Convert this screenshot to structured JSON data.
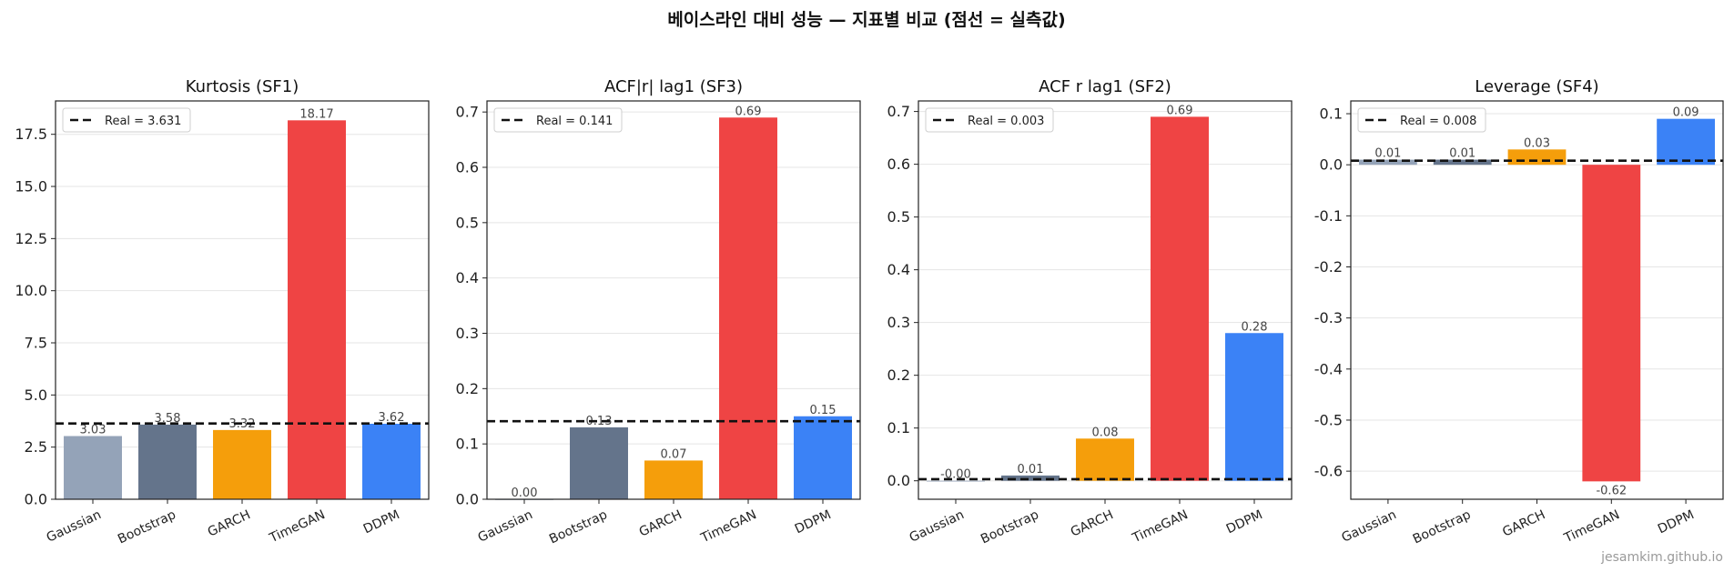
{
  "figure": {
    "suptitle": "베이스라인 대비 성능 — 지표별 비교 (점선 = 실측값)",
    "watermark": "jesamkim.github.io"
  },
  "colors": {
    "Gaussian": "#94a3b8",
    "Bootstrap": "#64748b",
    "GARCH": "#f59e0b",
    "TimeGAN": "#ef4444",
    "DDPM": "#3b82f6",
    "real_line": "#111111",
    "grid": "#e5e5e5"
  },
  "chart_data": [
    {
      "type": "bar",
      "title": "Kurtosis (SF1)",
      "categories": [
        "Gaussian",
        "Bootstrap",
        "GARCH",
        "TimeGAN",
        "DDPM"
      ],
      "values": [
        3.03,
        3.58,
        3.32,
        18.17,
        3.62
      ],
      "value_labels": [
        "3.03",
        "3.58",
        "3.32",
        "18.17",
        "3.62"
      ],
      "ylim": [
        0,
        19.1
      ],
      "yticks": [
        0.0,
        2.5,
        5.0,
        7.5,
        10.0,
        12.5,
        15.0,
        17.5
      ],
      "ytick_labels": [
        "0.0",
        "2.5",
        "5.0",
        "7.5",
        "10.0",
        "12.5",
        "15.0",
        "17.5"
      ],
      "real_value": 3.631,
      "legend": "Real = 3.631",
      "legend_loc": "upper-left",
      "grid": "y"
    },
    {
      "type": "bar",
      "title": "ACF|r| lag1 (SF3)",
      "categories": [
        "Gaussian",
        "Bootstrap",
        "GARCH",
        "TimeGAN",
        "DDPM"
      ],
      "values": [
        0.0,
        0.13,
        0.07,
        0.69,
        0.15
      ],
      "value_labels": [
        "0.00",
        "0.13",
        "0.07",
        "0.69",
        "0.15"
      ],
      "ylim": [
        0,
        0.72
      ],
      "yticks": [
        0.0,
        0.1,
        0.2,
        0.3,
        0.4,
        0.5,
        0.6,
        0.7
      ],
      "ytick_labels": [
        "0.0",
        "0.1",
        "0.2",
        "0.3",
        "0.4",
        "0.5",
        "0.6",
        "0.7"
      ],
      "real_value": 0.141,
      "legend": "Real = 0.141",
      "legend_loc": "upper-left",
      "grid": "y"
    },
    {
      "type": "bar",
      "title": "ACF r lag1 (SF2)",
      "categories": [
        "Gaussian",
        "Bootstrap",
        "GARCH",
        "TimeGAN",
        "DDPM"
      ],
      "values": [
        -0.0,
        0.01,
        0.08,
        0.69,
        0.28
      ],
      "value_labels": [
        "-0.00",
        "0.01",
        "0.08",
        "0.69",
        "0.28"
      ],
      "ylim": [
        -0.035,
        0.72
      ],
      "yticks": [
        0.0,
        0.1,
        0.2,
        0.3,
        0.4,
        0.5,
        0.6,
        0.7
      ],
      "ytick_labels": [
        "0.0",
        "0.1",
        "0.2",
        "0.3",
        "0.4",
        "0.5",
        "0.6",
        "0.7"
      ],
      "real_value": 0.003,
      "legend": "Real = 0.003",
      "legend_loc": "upper-left",
      "grid": "y"
    },
    {
      "type": "bar",
      "title": "Leverage (SF4)",
      "categories": [
        "Gaussian",
        "Bootstrap",
        "GARCH",
        "TimeGAN",
        "DDPM"
      ],
      "values": [
        0.01,
        0.01,
        0.03,
        -0.62,
        0.09
      ],
      "value_labels": [
        "0.01",
        "0.01",
        "0.03",
        "-0.62",
        "0.09"
      ],
      "ylim": [
        -0.655,
        0.125
      ],
      "yticks": [
        -0.6,
        -0.5,
        -0.4,
        -0.3,
        -0.2,
        -0.1,
        0.0,
        0.1
      ],
      "ytick_labels": [
        "-0.6",
        "-0.5",
        "-0.4",
        "-0.3",
        "-0.2",
        "-0.1",
        "0.0",
        "0.1"
      ],
      "real_value": 0.008,
      "legend": "Real = 0.008",
      "legend_loc": "upper-left",
      "grid": "y"
    }
  ]
}
